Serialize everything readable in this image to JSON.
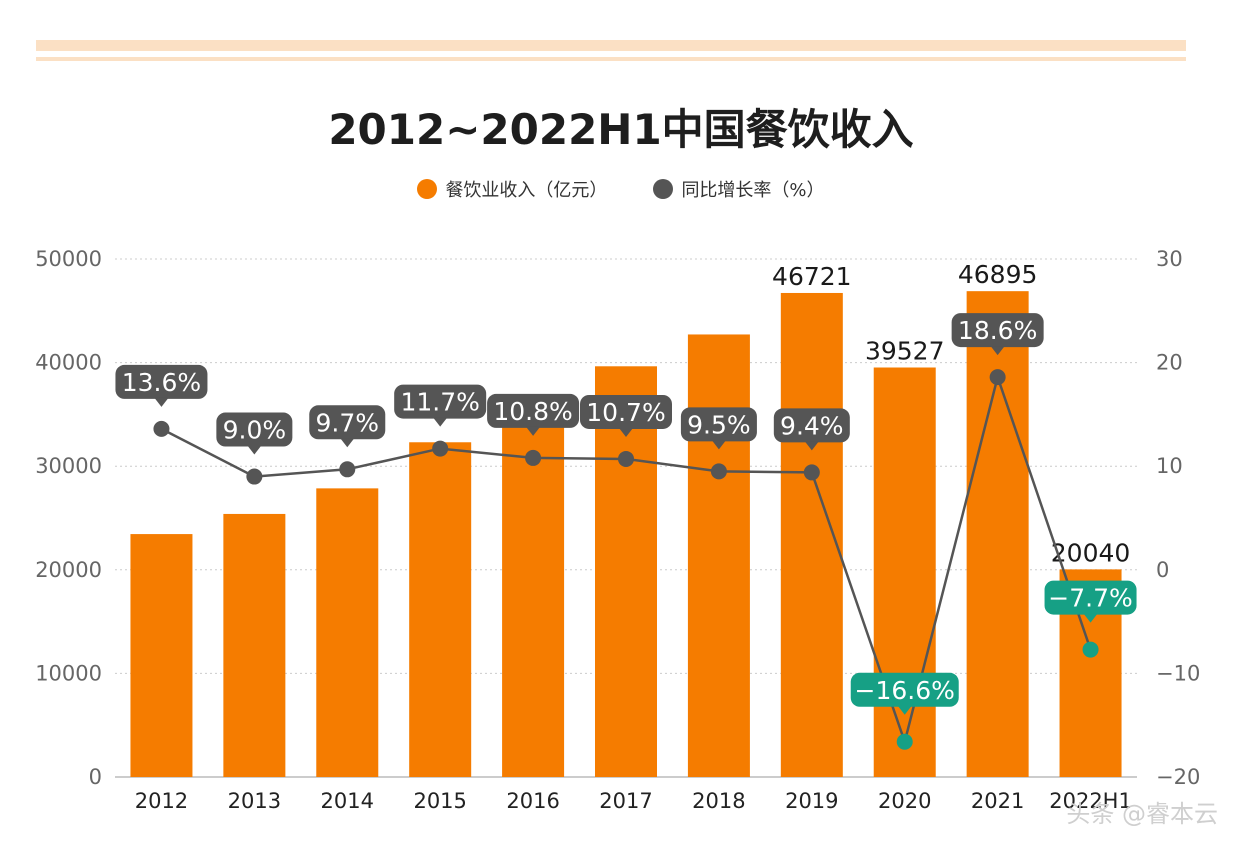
{
  "chart_data": {
    "type": "bar+line",
    "title": "2012~2022H1中国餐饮收入",
    "categories": [
      "2012",
      "2013",
      "2014",
      "2015",
      "2016",
      "2017",
      "2018",
      "2019",
      "2020",
      "2021",
      "2022H1"
    ],
    "series": [
      {
        "name": "餐饮业收入（亿元）",
        "type": "bar",
        "axis": "left",
        "values": [
          23448,
          25392,
          27860,
          32310,
          35799,
          39644,
          42716,
          46721,
          39527,
          46895,
          20040
        ],
        "labels": [
          "",
          "",
          "",
          "",
          "",
          "",
          "",
          "46721",
          "39527",
          "46895",
          "20040"
        ]
      },
      {
        "name": "同比增长率（%）",
        "type": "line",
        "axis": "right",
        "values": [
          13.6,
          9.0,
          9.7,
          11.7,
          10.8,
          10.7,
          9.5,
          9.4,
          -16.6,
          18.6,
          -7.7
        ],
        "labels": [
          "13.6%",
          "9.0%",
          "9.7%",
          "11.7%",
          "10.8%",
          "10.7%",
          "9.5%",
          "9.4%",
          "−16.6%",
          "18.6%",
          "−7.7%"
        ]
      }
    ],
    "y_left": {
      "range": [
        0,
        50000
      ],
      "ticks": [
        "0",
        "10000",
        "20000",
        "30000",
        "40000",
        "50000"
      ]
    },
    "y_right": {
      "range": [
        -20,
        30
      ],
      "ticks": [
        "−20",
        "−10",
        "0",
        "10",
        "20",
        "30"
      ]
    },
    "grid": true,
    "legend": "top-center"
  },
  "legend": {
    "revenue": "餐饮业收入（亿元）",
    "growth": "同比增长率（%）"
  },
  "colors": {
    "bar": "#f57c00",
    "line": "#555555",
    "positive_label": "#555555",
    "negative": "#16a085",
    "grid": "#cccccc"
  },
  "watermark": "头条 @睿本云"
}
